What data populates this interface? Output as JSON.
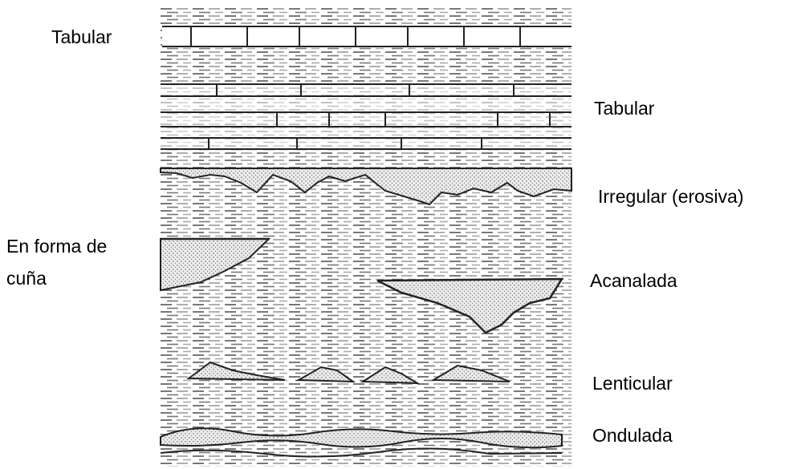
{
  "labels": [
    "Tabular",
    "Tabular",
    "Irregular (erosiva)",
    "En forma de cuña",
    "Acanalada",
    "Lenticular",
    "Ondulada"
  ]
}
